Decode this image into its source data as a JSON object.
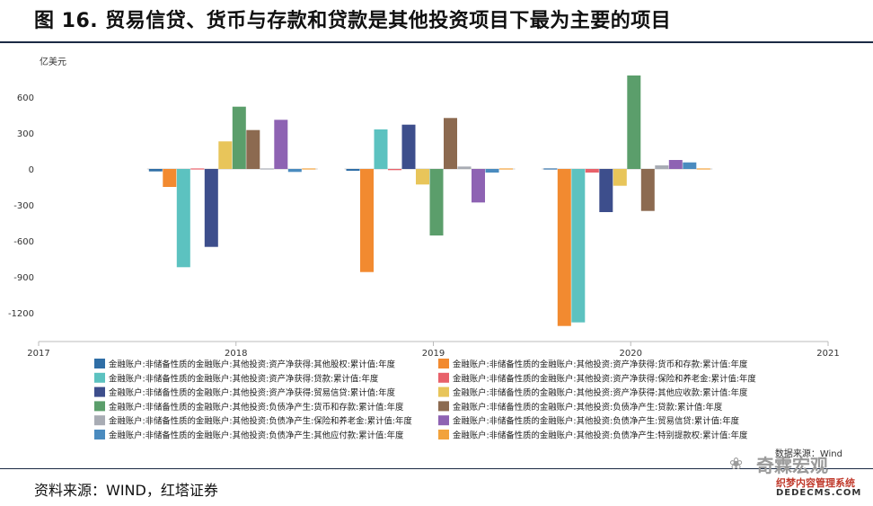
{
  "title": "图 16. 贸易信贷、货币与存款和贷款是其他投资项目下最为主要的项目",
  "source": "资料来源：WIND，红塔证券",
  "watermark": {
    "main": "奇霖宏观",
    "sub": "织梦内容管理系统",
    "site": "DEDECMS.COM",
    "icon": "wechat-icon"
  },
  "chart_data": {
    "type": "bar",
    "unit": "亿美元",
    "source_note": "数据来源：Wind",
    "categories": [
      "2018",
      "2019",
      "2020"
    ],
    "x_ticks": [
      "2017",
      "2018",
      "2019",
      "2020",
      "2021"
    ],
    "y_ticks": [
      600,
      300,
      0,
      -300,
      -600,
      -900,
      -1200
    ],
    "ylim": [
      -1500,
      800
    ],
    "grid": false,
    "legend_position": "bottom",
    "series": [
      {
        "name": "金融账户:非储备性质的金融账户:其他投资:资产净获得:其他股权:累计值:年度",
        "color": "#2f6ea6",
        "values": [
          -20,
          -15,
          -5
        ]
      },
      {
        "name": "金融账户:非储备性质的金融账户:其他投资:资产净获得:货币和存款:累计值:年度",
        "color": "#f28a30",
        "values": [
          -150,
          -860,
          -1310
        ]
      },
      {
        "name": "金融账户:非储备性质的金融账户:其他投资:资产净获得:贷款:累计值:年度",
        "color": "#5cc2c0",
        "values": [
          -820,
          330,
          -1280
        ]
      },
      {
        "name": "金融账户:非储备性质的金融账户:其他投资:资产净获得:保险和养老金:累计值:年度",
        "color": "#e8616a",
        "values": [
          0,
          -10,
          -30
        ]
      },
      {
        "name": "金融账户:非储备性质的金融账户:其他投资:资产净获得:贸易信贷:累计值:年度",
        "color": "#3d4e8c",
        "values": [
          -650,
          370,
          -360
        ]
      },
      {
        "name": "金融账户:非储备性质的金融账户:其他投资:资产净获得:其他应收款:累计值:年度",
        "color": "#e8c55a",
        "values": [
          230,
          -130,
          -140
        ]
      },
      {
        "name": "金融账户:非储备性质的金融账户:其他投资:负债净产生:货币和存款:累计值:年度",
        "color": "#5b9e6b",
        "values": [
          520,
          -555,
          780
        ]
      },
      {
        "name": "金融账户:非储备性质的金融账户:其他投资:负债净产生:贷款:累计值:年度",
        "color": "#8c6a50",
        "values": [
          325,
          425,
          -350
        ]
      },
      {
        "name": "金融账户:非储备性质的金融账户:其他投资:负债净产生:保险和养老金:累计值:年度",
        "color": "#a8acb4",
        "values": [
          0,
          20,
          30
        ]
      },
      {
        "name": "金融账户:非储备性质的金融账户:其他投资:负债净产生:贸易信贷:累计值:年度",
        "color": "#8e63b3",
        "values": [
          410,
          -280,
          75
        ]
      },
      {
        "name": "金融账户:非储备性质的金融账户:其他投资:负债净产生:其他应付款:累计值:年度",
        "color": "#4a8bbf",
        "values": [
          -25,
          -30,
          55
        ]
      },
      {
        "name": "金融账户:非储备性质的金融账户:其他投资:负债净产生:特别提款权:累计值:年度",
        "color": "#f2a23c",
        "values": [
          0,
          0,
          0
        ]
      }
    ]
  }
}
